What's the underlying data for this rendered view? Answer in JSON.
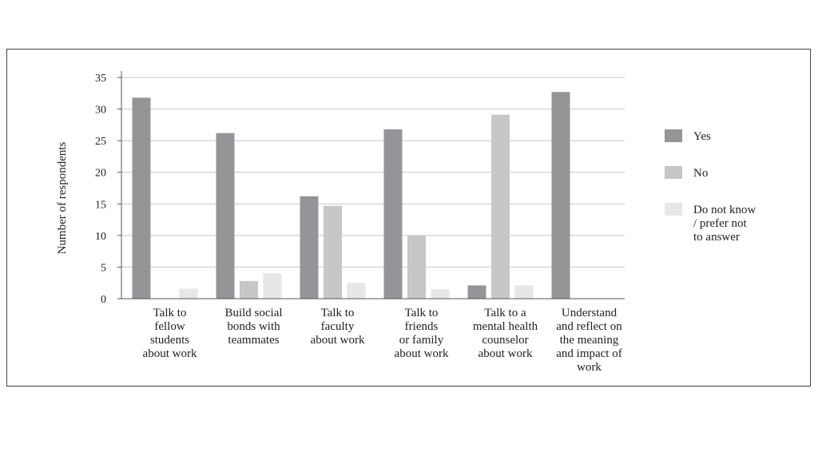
{
  "chart_data": {
    "type": "bar",
    "title": "",
    "xlabel": "",
    "ylabel": "Number of respondents",
    "ylim": [
      0,
      35
    ],
    "yticks": [
      0,
      5,
      10,
      15,
      20,
      25,
      30,
      35
    ],
    "grid": true,
    "legend_position": "right",
    "categories": [
      [
        "Talk to",
        "fellow",
        "students",
        "about work"
      ],
      [
        "Build social",
        "bonds with",
        "teammates"
      ],
      [
        "Talk to",
        "faculty",
        "about work"
      ],
      [
        "Talk to",
        "friends",
        "or family",
        "about work"
      ],
      [
        "Talk to a",
        "mental health",
        "counselor",
        "about work"
      ],
      [
        "Understand",
        "and reflect on",
        "the meaning",
        "and impact of",
        "work"
      ]
    ],
    "series": [
      {
        "name": "Yes",
        "color": "#939598",
        "values": [
          31.8,
          26.2,
          16.2,
          26.8,
          2.1,
          32.7
        ]
      },
      {
        "name": "No",
        "color": "#c6c7c9",
        "values": [
          0,
          2.8,
          14.7,
          10,
          29.1,
          0
        ]
      },
      {
        "name": "Do not know / prefer not to answer",
        "color": "#e6e7e8",
        "values": [
          1.6,
          4,
          2.5,
          1.5,
          2.1,
          0
        ]
      }
    ],
    "legend": [
      {
        "label_lines": [
          "Yes"
        ],
        "color": "#939598"
      },
      {
        "label_lines": [
          "No"
        ],
        "color": "#c6c7c9"
      },
      {
        "label_lines": [
          "Do not know",
          "/ prefer not",
          "to answer"
        ],
        "color": "#e6e7e8"
      }
    ]
  }
}
